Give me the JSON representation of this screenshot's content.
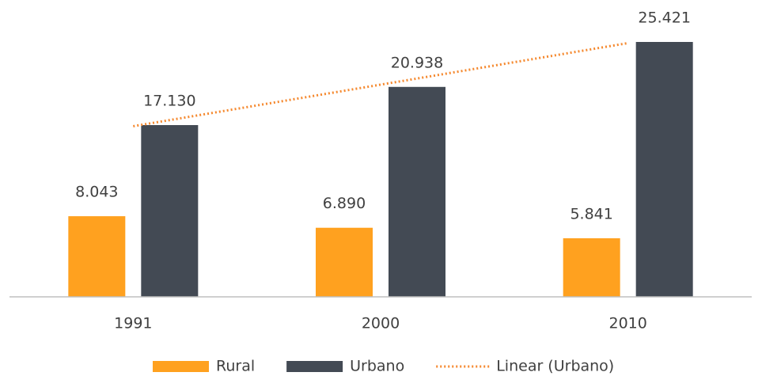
{
  "chart_data": {
    "type": "bar",
    "categories": [
      "1991",
      "2000",
      "2010"
    ],
    "series": [
      {
        "name": "Rural",
        "color": "#ffa11f",
        "values": [
          8043,
          6890,
          5841
        ],
        "value_labels": [
          "8.043",
          "6.890",
          "5.841"
        ]
      },
      {
        "name": "Urbano",
        "color": "#434a54",
        "values": [
          17130,
          20938,
          25421
        ],
        "value_labels": [
          "17.130",
          "20.938",
          "25.421"
        ]
      }
    ],
    "trendline": {
      "type": "linear",
      "series": 1,
      "name": "Linear (Urbano)",
      "color": "#f5892f"
    },
    "legend": "bottom"
  }
}
